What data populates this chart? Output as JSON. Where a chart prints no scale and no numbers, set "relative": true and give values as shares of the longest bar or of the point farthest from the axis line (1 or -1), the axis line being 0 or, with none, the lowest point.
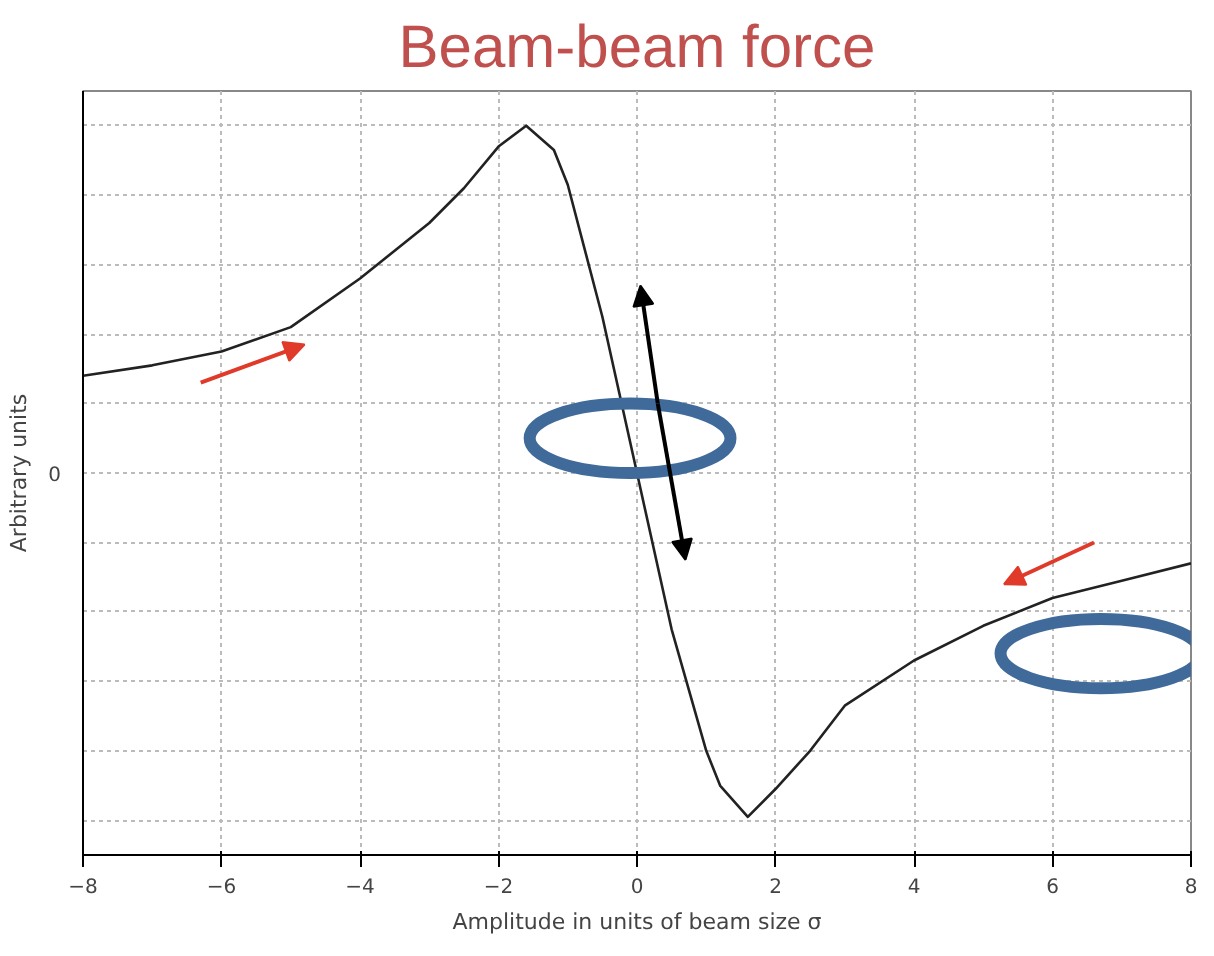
{
  "chart_data": {
    "type": "line",
    "title": "Beam-beam force",
    "xlabel": "Amplitude in units of beam size σ",
    "ylabel": "Arbitrary units",
    "relative": true,
    "x": [
      -8,
      -7,
      -6,
      -5,
      -4,
      -3,
      -2.5,
      -2,
      -1.6,
      -1.2,
      -1,
      -0.5,
      0,
      0.5,
      1,
      1.2,
      1.6,
      2,
      2.5,
      3,
      4,
      5,
      6,
      7,
      8
    ],
    "series": [
      {
        "color": "#222222",
        "values": [
          0.28,
          0.31,
          0.35,
          0.42,
          0.56,
          0.72,
          0.82,
          0.94,
          1.0,
          0.93,
          0.83,
          0.45,
          0,
          -0.45,
          -0.8,
          -0.9,
          -0.99,
          -0.91,
          -0.8,
          -0.67,
          -0.54,
          -0.44,
          -0.36,
          -0.31,
          -0.26
        ]
      }
    ],
    "xlim": [
      -8,
      8
    ],
    "xticks": [
      -8,
      -6,
      -4,
      -2,
      0,
      2,
      4,
      6,
      8
    ],
    "grid": true,
    "annotations": [
      "0"
    ]
  }
}
